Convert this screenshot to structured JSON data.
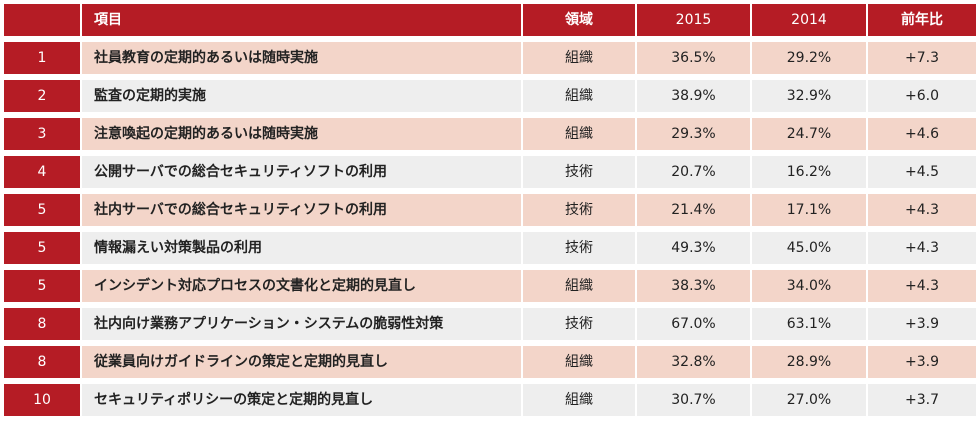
{
  "header": {
    "rank": "",
    "item": "項目",
    "domain": "領域",
    "y2015": "2015",
    "y2014": "2014",
    "diff": "前年比"
  },
  "rows": [
    {
      "rank": "1",
      "item": "社員教育の定期的あるいは随時実施",
      "domain": "組織",
      "y2015": "36.5%",
      "y2014": "29.2%",
      "diff": "+7.3"
    },
    {
      "rank": "2",
      "item": "監査の定期的実施",
      "domain": "組織",
      "y2015": "38.9%",
      "y2014": "32.9%",
      "diff": "+6.0"
    },
    {
      "rank": "3",
      "item": "注意喚起の定期的あるいは随時実施",
      "domain": "組織",
      "y2015": "29.3%",
      "y2014": "24.7%",
      "diff": "+4.6"
    },
    {
      "rank": "4",
      "item": "公開サーバでの総合セキュリティソフトの利用",
      "domain": "技術",
      "y2015": "20.7%",
      "y2014": "16.2%",
      "diff": "+4.5"
    },
    {
      "rank": "5",
      "item": "社内サーバでの総合セキュリティソフトの利用",
      "domain": "技術",
      "y2015": "21.4%",
      "y2014": "17.1%",
      "diff": "+4.3"
    },
    {
      "rank": "5",
      "item": "情報漏えい対策製品の利用",
      "domain": "技術",
      "y2015": "49.3%",
      "y2014": "45.0%",
      "diff": "+4.3"
    },
    {
      "rank": "5",
      "item": "インシデント対応プロセスの文書化と定期的見直し",
      "domain": "組織",
      "y2015": "38.3%",
      "y2014": "34.0%",
      "diff": "+4.3"
    },
    {
      "rank": "8",
      "item": "社内向け業務アプリケーション・システムの脆弱性対策",
      "domain": "技術",
      "y2015": "67.0%",
      "y2014": "63.1%",
      "diff": "+3.9"
    },
    {
      "rank": "8",
      "item": "従業員向けガイドラインの策定と定期的見直し",
      "domain": "組織",
      "y2015": "32.8%",
      "y2014": "28.9%",
      "diff": "+3.9"
    },
    {
      "rank": "10",
      "item": "セキュリティポリシーの策定と定期的見直し",
      "domain": "組織",
      "y2015": "30.7%",
      "y2014": "27.0%",
      "diff": "+3.7"
    }
  ]
}
